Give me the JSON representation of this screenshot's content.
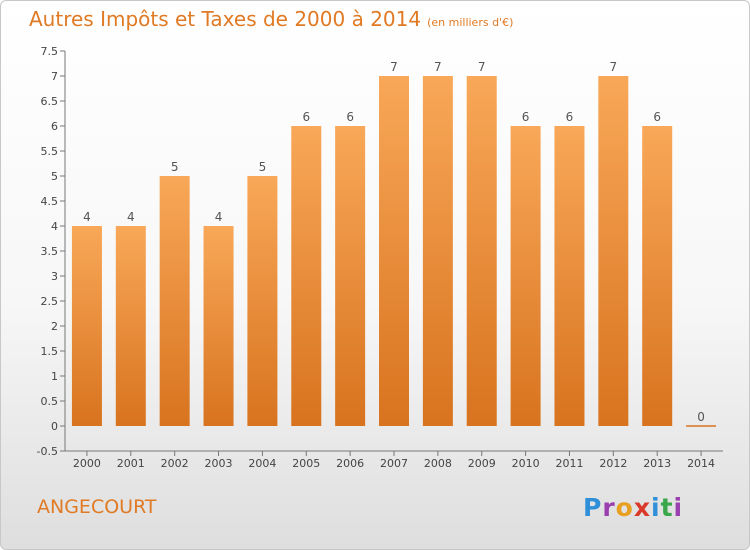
{
  "title": "Autres Impôts et Taxes de 2000 à 2014",
  "unit_note": "(en milliers d'€)",
  "commune": "ANGECOURT",
  "logo": {
    "letters": [
      "P",
      "r",
      "o",
      "x",
      "i",
      "t",
      "i"
    ],
    "colors": [
      "#2f8fd8",
      "#9b3fb0",
      "#e8a020",
      "#d93a2a",
      "#2f8fd8",
      "#3aa84a",
      "#9b3fb0"
    ]
  },
  "colors": {
    "bar_light": "#f8a858",
    "bar_dark": "#d8731f",
    "accent": "#e07a24"
  },
  "chart_data": {
    "type": "bar",
    "title": "Autres Impôts et Taxes de 2000 à 2014",
    "subtitle": "(en milliers d'€)",
    "categories": [
      "2000",
      "2001",
      "2002",
      "2003",
      "2004",
      "2005",
      "2006",
      "2007",
      "2008",
      "2009",
      "2010",
      "2011",
      "2012",
      "2013",
      "2014"
    ],
    "values": [
      4,
      4,
      5,
      4,
      5,
      6,
      6,
      7,
      7,
      7,
      6,
      6,
      7,
      6,
      0
    ],
    "data_labels": [
      "4",
      "4",
      "5",
      "4",
      "5",
      "6",
      "6",
      "7",
      "7",
      "7",
      "6",
      "6",
      "7",
      "6",
      "0"
    ],
    "ylim": [
      -0.5,
      7.5
    ],
    "yticks": [
      -0.5,
      0,
      0.5,
      1,
      1.5,
      2,
      2.5,
      3,
      3.5,
      4,
      4.5,
      5,
      5.5,
      6,
      6.5,
      7,
      7.5
    ],
    "ytick_labels": [
      "-0.5",
      "0",
      "0.5",
      "1",
      "1.5",
      "2",
      "2.5",
      "3",
      "3.5",
      "4",
      "4.5",
      "5",
      "5.5",
      "6",
      "6.5",
      "7",
      "7.5"
    ],
    "xlabel": "",
    "ylabel": "",
    "grid": false
  }
}
